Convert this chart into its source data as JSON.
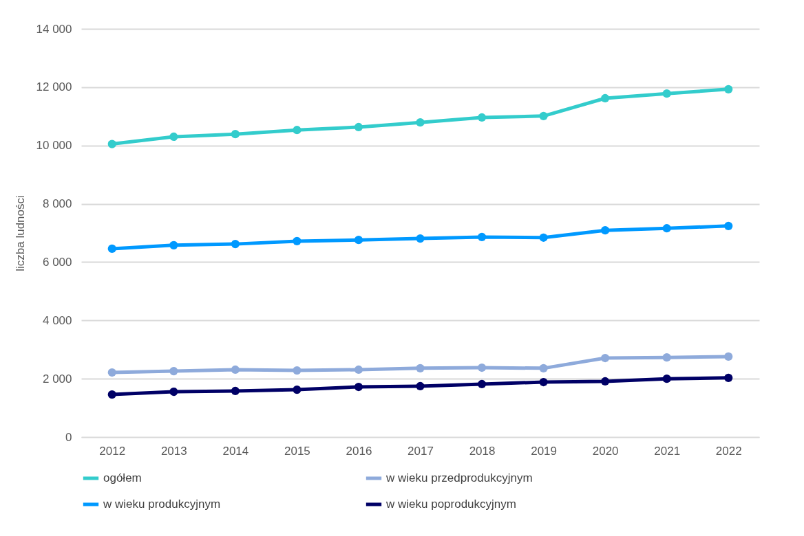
{
  "chart_data": {
    "type": "line",
    "ylabel": "liczba ludności",
    "categories": [
      "2012",
      "2013",
      "2014",
      "2015",
      "2016",
      "2017",
      "2018",
      "2019",
      "2020",
      "2021",
      "2022"
    ],
    "series": [
      {
        "name": "ogółem",
        "color": "#33cccc",
        "values": [
          10050,
          10300,
          10390,
          10530,
          10630,
          10790,
          10960,
          11010,
          11620,
          11780,
          11930
        ]
      },
      {
        "name": "w wieku przedprodukcyjnym",
        "color": "#8eaadb",
        "values": [
          2215,
          2260,
          2310,
          2285,
          2310,
          2360,
          2380,
          2360,
          2710,
          2730,
          2760
        ]
      },
      {
        "name": "w wieku produkcyjnym",
        "color": "#0099ff",
        "values": [
          6460,
          6580,
          6620,
          6720,
          6760,
          6810,
          6860,
          6840,
          7090,
          7160,
          7240
        ]
      },
      {
        "name": "w wieku poprodukcyjnym",
        "color": "#000066",
        "values": [
          1460,
          1555,
          1580,
          1625,
          1720,
          1745,
          1815,
          1885,
          1910,
          2000,
          2030
        ]
      }
    ],
    "ylim": [
      0,
      14000
    ],
    "yticks": [
      0,
      {
        "value": 2000,
        "label": "2 000"
      },
      {
        "value": 4000,
        "label": "4 000"
      },
      {
        "value": 6000,
        "label": "6 000"
      },
      {
        "value": 8000,
        "label": "8 000"
      },
      {
        "value": 10000,
        "label": "10 000"
      },
      {
        "value": 12000,
        "label": "12 000"
      },
      {
        "value": 14000,
        "label": "14 000"
      }
    ],
    "grid": "y",
    "legend": "bottom",
    "marker": "circle",
    "line_style": "solid"
  }
}
